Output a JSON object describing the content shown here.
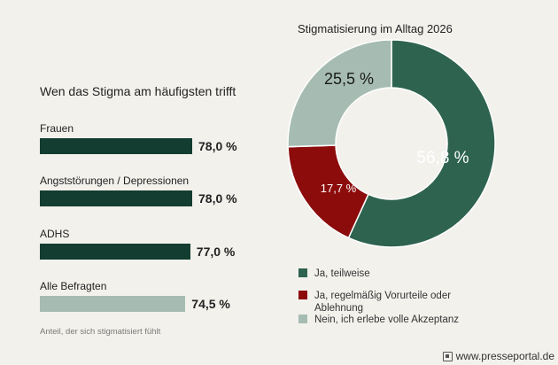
{
  "chart_data": [
    {
      "type": "bar",
      "title": "Wen das Stigma am häufigsten trifft",
      "categories": [
        "Frauen",
        "Angststörungen / Depressionen",
        "ADHS",
        "Alle Befragten"
      ],
      "values": [
        78.0,
        78.0,
        77.0,
        74.5
      ],
      "value_labels": [
        "78,0 %",
        "78,0 %",
        "77,0 %",
        "74,5 %"
      ],
      "colors": [
        "#133d30",
        "#133d30",
        "#133d30",
        "#a6bcb2"
      ],
      "footnote": "Anteil, der sich stigmatisiert fühlt",
      "unit": "%"
    },
    {
      "type": "pie",
      "title": "Stigmatisierung im Alltag 2026",
      "labels": [
        "Ja, teilweise",
        "Ja, regelmäßig Vorurteile oder Ablehnung",
        "Nein, ich erlebe volle Akzeptanz"
      ],
      "values": [
        56.8,
        17.7,
        25.5
      ],
      "value_labels": [
        "56,8 %",
        "17,7 %",
        "25,5 %"
      ],
      "colors": [
        "#2e6350",
        "#8c0c0c",
        "#a6bcb2"
      ],
      "legend_lines": [
        [
          "Ja, teilweise"
        ],
        [
          "Ja, regelmäßig Vorurteile oder",
          "Ablehnung"
        ],
        [
          "Nein, ich erlebe volle Akzeptanz"
        ]
      ]
    }
  ],
  "watermark": {
    "text": "www.presseportal.de",
    "icon": "presseportal-icon"
  }
}
